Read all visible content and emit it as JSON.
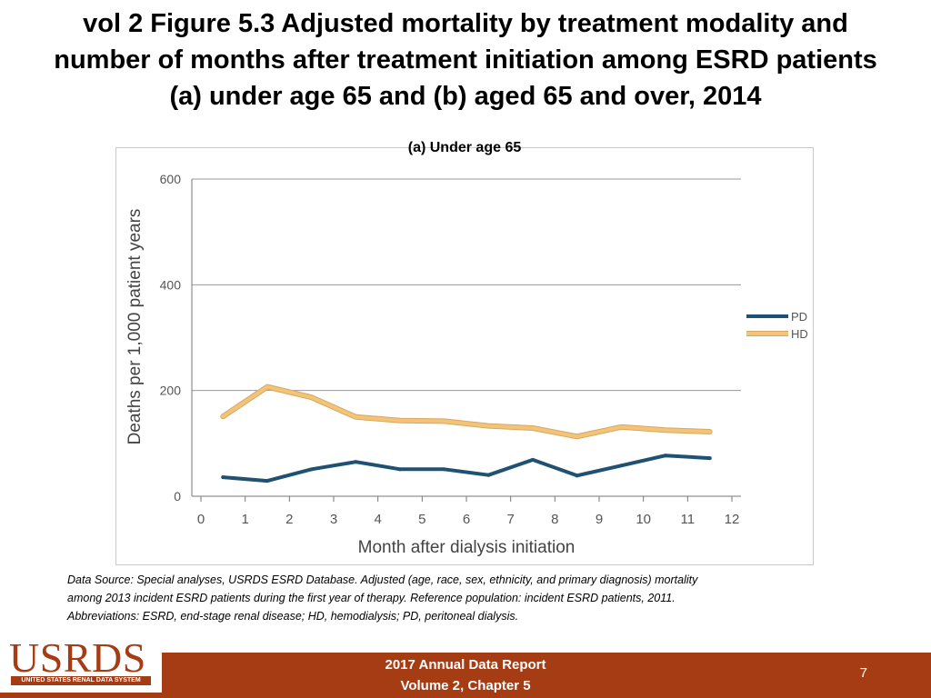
{
  "slide": {
    "title_line1": "vol 2 Figure 5.3 Adjusted mortality by treatment modality and",
    "title_line2": "number of months after treatment initiation among ESRD patients",
    "title_line3": "(a) under age 65 and (b) aged 65 and over, 2014"
  },
  "chart_data": {
    "type": "line",
    "title": "(a) Under age 65",
    "xlabel": "Month after dialysis initiation",
    "ylabel": "Deaths per 1,000 patient years",
    "xlim": [
      0,
      12
    ],
    "ylim": [
      0,
      600
    ],
    "x_ticks": [
      0,
      1,
      2,
      3,
      4,
      5,
      6,
      7,
      8,
      9,
      10,
      11,
      12
    ],
    "y_ticks": [
      0,
      200,
      400,
      600
    ],
    "grid": true,
    "legend_position": "right",
    "x": [
      0.5,
      1.5,
      2.5,
      3.5,
      4.5,
      5.5,
      6.5,
      7.5,
      8.5,
      9.5,
      10.5,
      11.5
    ],
    "series": [
      {
        "name": "PD",
        "color": "#1f5173",
        "values": [
          36,
          29,
          51,
          65,
          51,
          51,
          40,
          69,
          39,
          58,
          77,
          72
        ]
      },
      {
        "name": "HD",
        "color": "#f2c47a",
        "values": [
          151,
          207,
          187,
          150,
          143,
          142,
          133,
          129,
          113,
          131,
          125,
          122
        ]
      }
    ]
  },
  "footnote": {
    "line1": "Data Source: Special analyses, USRDS ESRD Database. Adjusted (age, race, sex, ethnicity, and primary diagnosis) mortality",
    "line2": "among 2013 incident ESRD patients during the first year of therapy. Reference population: incident ESRD patients, 2011.",
    "line3": "Abbreviations: ESRD, end-stage renal disease; HD, hemodialysis; PD, peritoneal dialysis."
  },
  "footer": {
    "report_line1": "2017 Annual Data Report",
    "report_line2": "Volume 2, Chapter 5",
    "page_number": "7",
    "logo_text": "USRDS",
    "logo_subtext": "UNITED STATES RENAL DATA SYSTEM"
  },
  "colors": {
    "footer_bar": "#a53c14",
    "axis": "#777777",
    "gridline": "#9a9a9a",
    "tick_label": "#555555"
  }
}
